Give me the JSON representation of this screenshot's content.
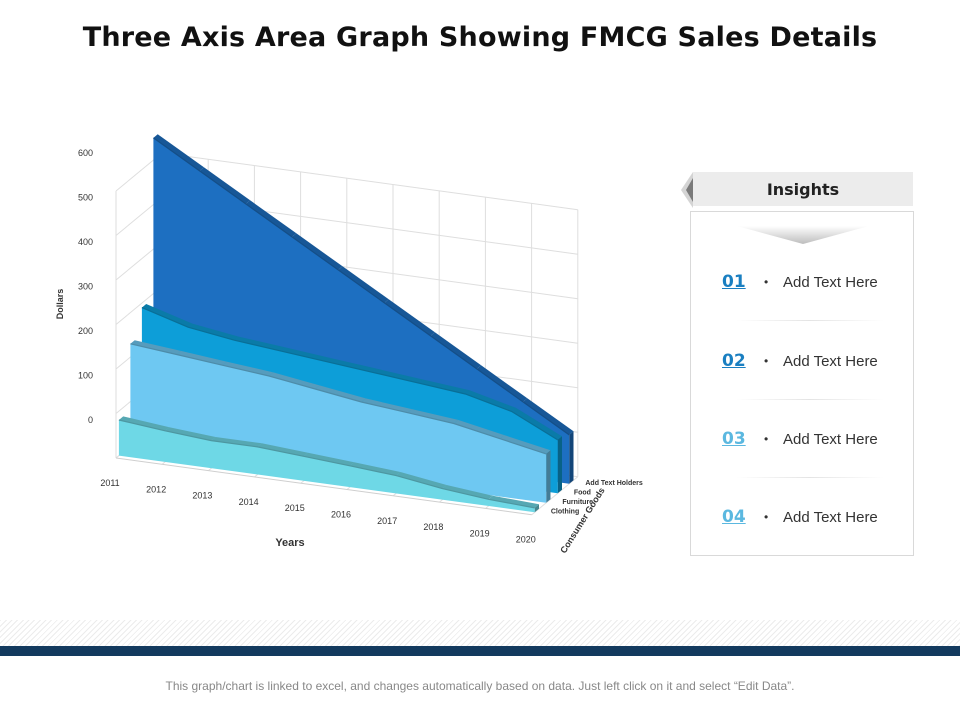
{
  "title": "Three Axis Area Graph Showing FMCG Sales Details",
  "chart_data": {
    "type": "area",
    "subtype": "3d-area",
    "ylabel": "Dollars",
    "xlabel": "Years",
    "zlabel": "Consumer Goods",
    "ylim": [
      0,
      600
    ],
    "yticks": [
      "0",
      "100",
      "200",
      "300",
      "400",
      "500",
      "600"
    ],
    "categories": [
      "2011",
      "2012",
      "2013",
      "2014",
      "2015",
      "2016",
      "2017",
      "2018",
      "2019",
      "2020"
    ],
    "series": [
      {
        "name": "Add Text Holders",
        "color": "#1d6fc1",
        "values": [
          650,
          590,
          530,
          470,
          410,
          350,
          290,
          230,
          170,
          110
        ]
      },
      {
        "name": "Food",
        "color": "#0d9ed8",
        "values": [
          290,
          260,
          245,
          235,
          225,
          215,
          205,
          195,
          170,
          120
        ]
      },
      {
        "name": "Furniture",
        "color": "#6ec8f2",
        "values": [
          230,
          220,
          210,
          200,
          185,
          170,
          160,
          150,
          130,
          110
        ]
      },
      {
        "name": "Clothing",
        "color": "#6ed8e6",
        "values": [
          80,
          70,
          62,
          62,
          55,
          48,
          40,
          25,
          15,
          10
        ]
      }
    ]
  },
  "insights": {
    "header": "Insights",
    "items": [
      {
        "num": "01",
        "text": "Add Text Here",
        "color": "#1a7fc1"
      },
      {
        "num": "02",
        "text": "Add Text Here",
        "color": "#1a7fc1"
      },
      {
        "num": "03",
        "text": "Add Text Here",
        "color": "#5bb8e0"
      },
      {
        "num": "04",
        "text": "Add Text Here",
        "color": "#5bb8e0"
      }
    ]
  },
  "footnote": "This graph/chart is linked to excel, and changes automatically based on data. Just left click on it and select “Edit Data”."
}
